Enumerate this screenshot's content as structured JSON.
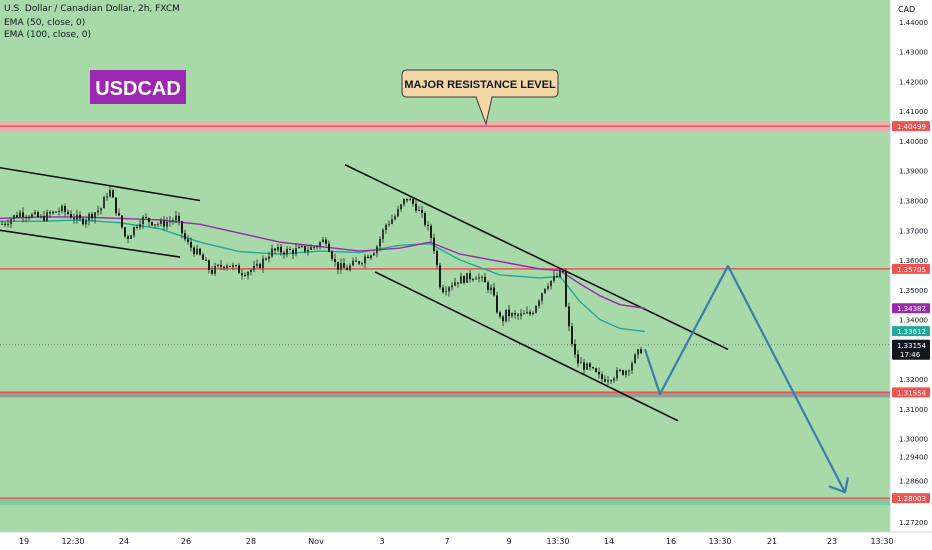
{
  "header": {
    "title": "U.S. Dollar / Canadian Dollar, 2h, FXCM",
    "indicators": [
      "EMA (50, close, 0)",
      "EMA (100, close, 0)"
    ]
  },
  "symbol_badge": "USDCAD",
  "callout": "MAJOR RESISTANCE LEVEL",
  "currency": "CAD",
  "countdown": "17:46",
  "colors": {
    "background": "#a8d9a8",
    "badge": "#9c27b0",
    "callout_bg": "#f3d7a7",
    "level_red": "#ef5350",
    "ema50": "#26a69a",
    "ema100": "#9c27b0",
    "projection": "#3d7cab",
    "candle": "#1f2c22"
  },
  "chart_data": {
    "type": "line",
    "title": "U.S. Dollar / Canadian Dollar, 2h, FXCM",
    "xlabel": "",
    "ylabel": "",
    "x_ticks": [
      "19",
      "12:30",
      "24",
      "26",
      "28",
      "Nov",
      "3",
      "7",
      "9",
      "13:30",
      "14",
      "16",
      "13:30",
      "21",
      "23",
      "13:30"
    ],
    "y_ticks": [
      "1.44000",
      "1.43000",
      "1.42000",
      "1.41000",
      "1.40000",
      "1.39000",
      "1.38000",
      "1.37000",
      "1.36000",
      "1.35000",
      "1.34000",
      "1.33000",
      "1.32000",
      "1.31000",
      "1.30000",
      "1.29400",
      "1.28600",
      "1.27200"
    ],
    "y_tick_values": [
      1.44,
      1.43,
      1.42,
      1.41,
      1.4,
      1.39,
      1.38,
      1.37,
      1.36,
      1.35,
      1.34,
      1.33,
      1.32,
      1.31,
      1.3,
      1.294,
      1.286,
      1.272
    ],
    "ylim": [
      1.27,
      1.446
    ],
    "grid": false,
    "price_labels": [
      {
        "label": "1.40499",
        "value": 1.40499,
        "bg": "#ef5350"
      },
      {
        "label": "1.35705",
        "value": 1.35705,
        "bg": "#ef5350"
      },
      {
        "label": "1.34382",
        "value": 1.34382,
        "bg": "#9c27b0"
      },
      {
        "label": "1.33612",
        "value": 1.33612,
        "bg": "#26a69a"
      },
      {
        "label": "1.33154",
        "value": 1.33154,
        "bg": "#131722"
      },
      {
        "label": "1.31554",
        "value": 1.31554,
        "bg": "#ef5350"
      },
      {
        "label": "1.28003",
        "value": 1.28003,
        "bg": "#ef5350"
      }
    ],
    "levels": [
      {
        "name": "major-resistance",
        "value": 1.40499
      },
      {
        "name": "resistance",
        "value": 1.35705
      },
      {
        "name": "support",
        "value": 1.31554
      },
      {
        "name": "target",
        "value": 1.28003
      }
    ],
    "series": [
      {
        "name": "EMA (50, close, 0)",
        "x": [
          0,
          40,
          80,
          120,
          160,
          200,
          240,
          280,
          320,
          360,
          400,
          430,
          460,
          500,
          540,
          560,
          580,
          600,
          620,
          645
        ],
        "values": [
          1.373,
          1.373,
          1.3735,
          1.3725,
          1.3705,
          1.366,
          1.3628,
          1.362,
          1.363,
          1.3625,
          1.365,
          1.3655,
          1.36,
          1.355,
          1.354,
          1.3545,
          1.346,
          1.34,
          1.337,
          1.336
        ]
      },
      {
        "name": "EMA (100, close, 0)",
        "x": [
          0,
          40,
          80,
          120,
          160,
          200,
          240,
          280,
          320,
          360,
          400,
          430,
          460,
          500,
          540,
          560,
          580,
          600,
          620,
          645
        ],
        "values": [
          1.374,
          1.3745,
          1.3745,
          1.374,
          1.3735,
          1.372,
          1.369,
          1.366,
          1.3645,
          1.363,
          1.364,
          1.366,
          1.362,
          1.3595,
          1.357,
          1.3565,
          1.352,
          1.348,
          1.345,
          1.3438
        ]
      },
      {
        "name": "price",
        "x": [
          0,
          20,
          40,
          60,
          80,
          100,
          108,
          115,
          125,
          140,
          160,
          175,
          185,
          200,
          210,
          225,
          240,
          255,
          270,
          290,
          310,
          325,
          335,
          345,
          360,
          375,
          385,
          395,
          405,
          415,
          425,
          432,
          440,
          455,
          475,
          490,
          500,
          505,
          515,
          530,
          545,
          555,
          562,
          566,
          575,
          590,
          600,
          610,
          625,
          640
        ],
        "values": [
          1.372,
          1.376,
          1.374,
          1.377,
          1.373,
          1.3775,
          1.384,
          1.377,
          1.367,
          1.374,
          1.372,
          1.374,
          1.366,
          1.361,
          1.356,
          1.359,
          1.356,
          1.357,
          1.363,
          1.363,
          1.364,
          1.367,
          1.358,
          1.357,
          1.36,
          1.364,
          1.372,
          1.375,
          1.381,
          1.378,
          1.372,
          1.366,
          1.35,
          1.353,
          1.355,
          1.35,
          1.339,
          1.342,
          1.341,
          1.342,
          1.352,
          1.354,
          1.356,
          1.34,
          1.326,
          1.323,
          1.32,
          1.321,
          1.323,
          1.33
        ]
      }
    ],
    "trendlines": [
      {
        "name": "left-upper",
        "x": [
          0,
          200
        ],
        "values": [
          1.391,
          1.38
        ]
      },
      {
        "name": "left-lower",
        "x": [
          0,
          180
        ],
        "values": [
          1.37,
          1.361
        ]
      },
      {
        "name": "channel-upper",
        "x": [
          345,
          728
        ],
        "values": [
          1.392,
          1.33
        ]
      },
      {
        "name": "channel-lower",
        "x": [
          375,
          678
        ],
        "values": [
          1.356,
          1.306
        ]
      },
      {
        "name": "projection",
        "x": [
          645,
          660,
          728,
          845,
          848
        ],
        "values": [
          1.33,
          1.315,
          1.358,
          1.282,
          1.287
        ]
      }
    ]
  }
}
